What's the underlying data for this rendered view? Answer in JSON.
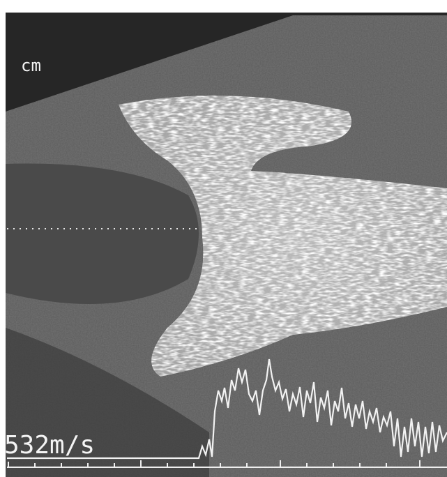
{
  "labels": {
    "depth_unit": "cm",
    "velocity": "532m/s"
  }
}
